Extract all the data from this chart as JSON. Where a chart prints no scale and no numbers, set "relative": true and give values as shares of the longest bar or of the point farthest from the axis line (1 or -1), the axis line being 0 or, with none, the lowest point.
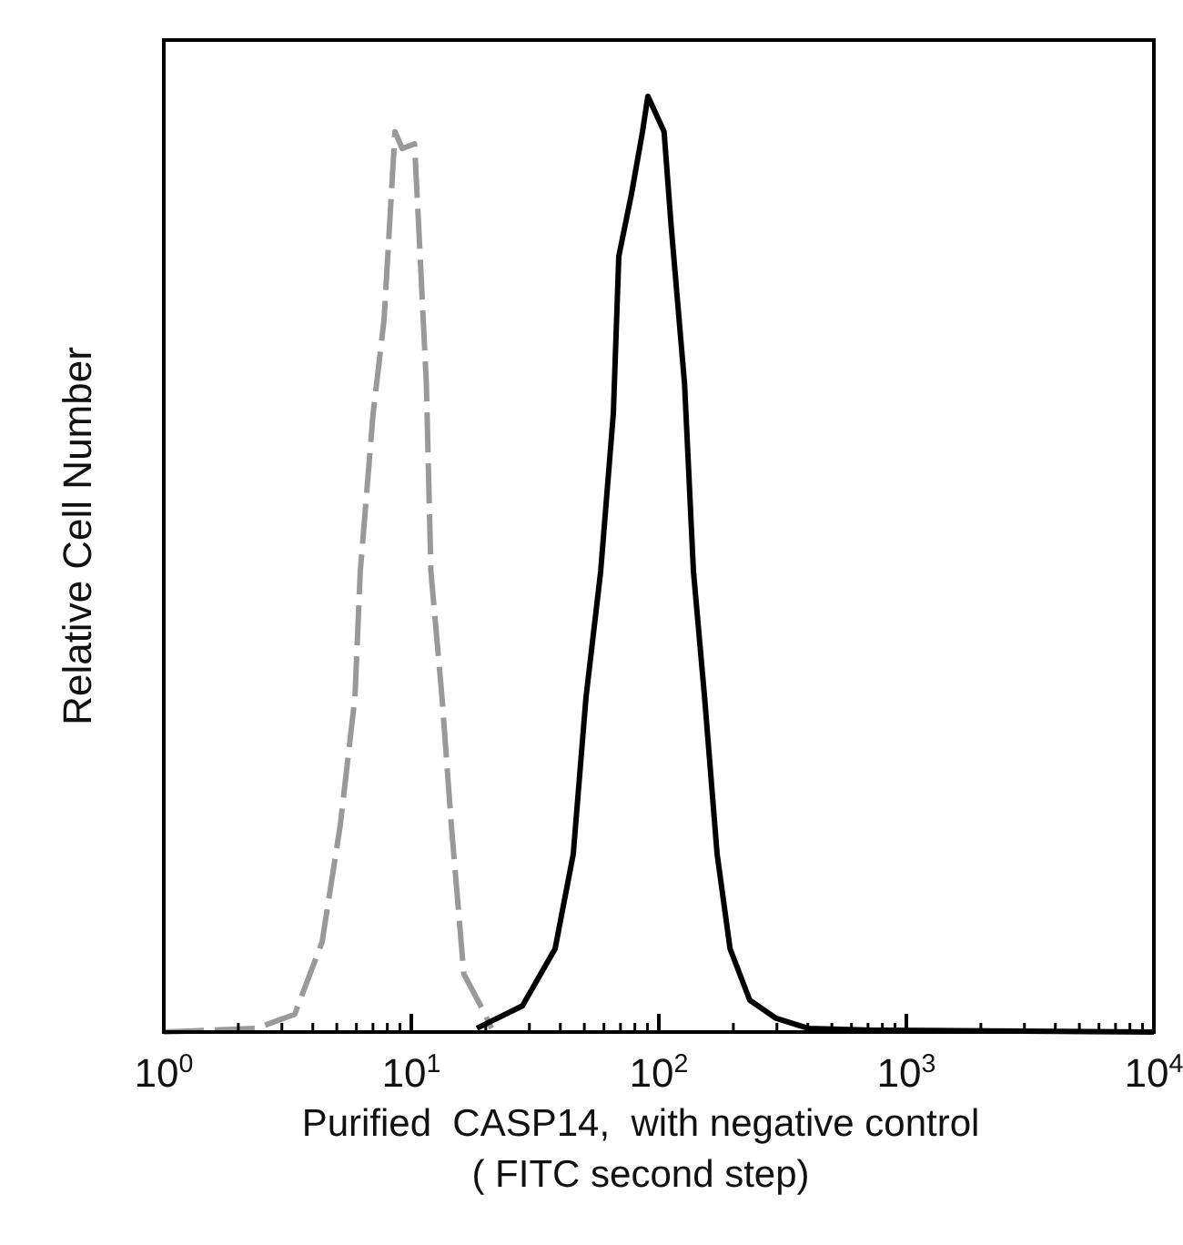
{
  "chart_data": {
    "type": "line",
    "relative": true,
    "log": "x",
    "xlabel": "Purified  CASP14,  with negative control\n( FITC second step)",
    "ylabel": "Relative Cell Number",
    "xlim": [
      1,
      10000
    ],
    "xticks": [
      {
        "value": 1,
        "label": "10$^{0}$"
      },
      {
        "value": 10,
        "label": "10$^{1}$"
      },
      {
        "value": 100,
        "label": "10$^{2}$"
      },
      {
        "value": 1000,
        "label": "10$^{3}$"
      },
      {
        "value": 10000,
        "label": "10$^{4}$"
      }
    ],
    "grid": false,
    "series": [
      {
        "color": "#999999",
        "line_style": "dashed",
        "x": [
          1,
          2.37,
          3.38,
          4.36,
          5.17,
          5.92,
          6.22,
          7.01,
          7.76,
          8.17,
          8.59,
          9.19,
          10.3,
          10.7,
          11.5,
          12.0,
          13.3,
          14.5,
          16.3,
          19.7,
          21.1
        ],
        "values": [
          0,
          0.004,
          0.019,
          0.096,
          0.222,
          0.358,
          0.492,
          0.661,
          0.761,
          0.863,
          0.962,
          0.944,
          0.949,
          0.863,
          0.693,
          0.492,
          0.358,
          0.222,
          0.062,
          0.021,
          0.004
        ]
      },
      {
        "color": "#000000",
        "line_style": "solid",
        "x": [
          18.4,
          28.1,
          38.1,
          45.1,
          50.8,
          58.2,
          65.5,
          68.9,
          77.6,
          85.9,
          90.3,
          105,
          112,
          127,
          138,
          153,
          172,
          194,
          233,
          296,
          401,
          738,
          10000
        ],
        "values": [
          0.004,
          0.028,
          0.089,
          0.19,
          0.358,
          0.492,
          0.661,
          0.829,
          0.896,
          0.962,
          1,
          0.962,
          0.863,
          0.693,
          0.492,
          0.358,
          0.19,
          0.089,
          0.034,
          0.015,
          0.004,
          0.002,
          0
        ]
      }
    ]
  }
}
